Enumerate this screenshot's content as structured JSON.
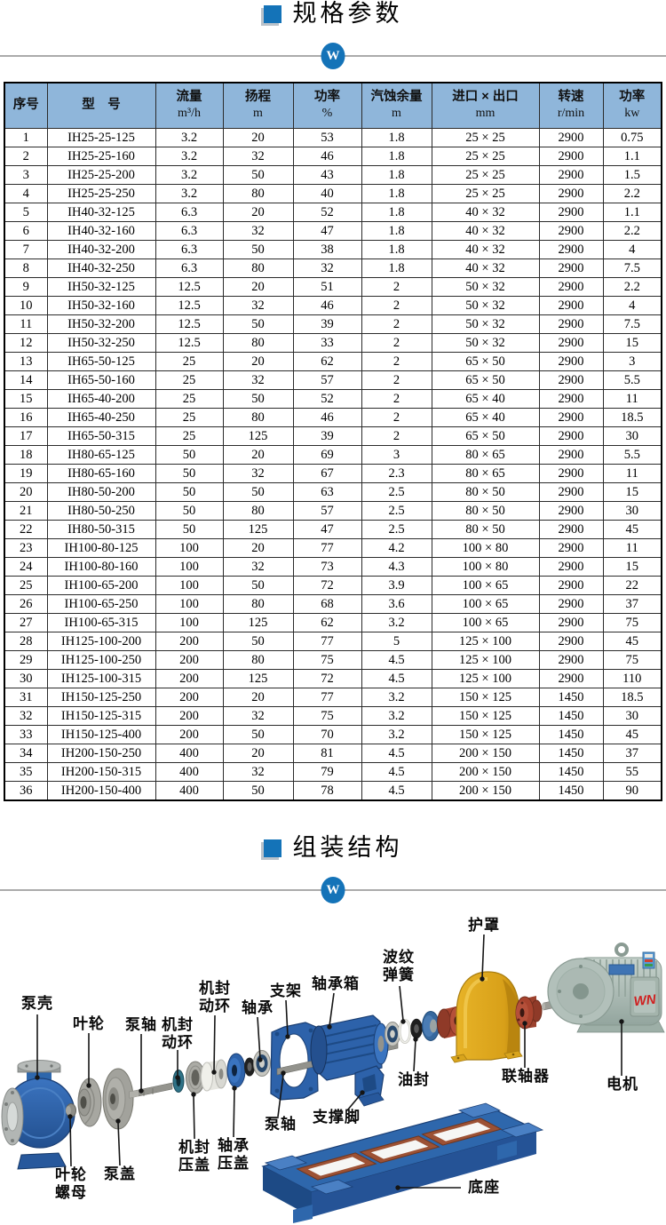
{
  "colors": {
    "accent": "#1473b8",
    "table_header_bg": "#8fb6da"
  },
  "section_specs": {
    "title": "规格参数",
    "watermark_letter": "W"
  },
  "section_assembly": {
    "title": "组装结构",
    "watermark_letter": "W"
  },
  "spec_table": {
    "columns": [
      {
        "label": "序号",
        "unit": ""
      },
      {
        "label": "型　号",
        "unit": ""
      },
      {
        "label": "流量",
        "unit": "m³/h"
      },
      {
        "label": "扬程",
        "unit": "m"
      },
      {
        "label": "功率",
        "unit": "%"
      },
      {
        "label": "汽蚀余量",
        "unit": "m"
      },
      {
        "label": "进口 × 出口",
        "unit": "mm"
      },
      {
        "label": "转速",
        "unit": "r/min"
      },
      {
        "label": "功率",
        "unit": "kw"
      }
    ],
    "rows": [
      [
        "1",
        "IH25-25-125",
        "3.2",
        "20",
        "53",
        "1.8",
        "25 × 25",
        "2900",
        "0.75"
      ],
      [
        "2",
        "IH25-25-160",
        "3.2",
        "32",
        "46",
        "1.8",
        "25 × 25",
        "2900",
        "1.1"
      ],
      [
        "3",
        "IH25-25-200",
        "3.2",
        "50",
        "43",
        "1.8",
        "25 × 25",
        "2900",
        "1.5"
      ],
      [
        "4",
        "IH25-25-250",
        "3.2",
        "80",
        "40",
        "1.8",
        "25 × 25",
        "2900",
        "2.2"
      ],
      [
        "5",
        "IH40-32-125",
        "6.3",
        "20",
        "52",
        "1.8",
        "40 × 32",
        "2900",
        "1.1"
      ],
      [
        "6",
        "IH40-32-160",
        "6.3",
        "32",
        "47",
        "1.8",
        "40 × 32",
        "2900",
        "2.2"
      ],
      [
        "7",
        "IH40-32-200",
        "6.3",
        "50",
        "38",
        "1.8",
        "40 × 32",
        "2900",
        "4"
      ],
      [
        "8",
        "IH40-32-250",
        "6.3",
        "80",
        "32",
        "1.8",
        "40 × 32",
        "2900",
        "7.5"
      ],
      [
        "9",
        "IH50-32-125",
        "12.5",
        "20",
        "51",
        "2",
        "50 × 32",
        "2900",
        "2.2"
      ],
      [
        "10",
        "IH50-32-160",
        "12.5",
        "32",
        "46",
        "2",
        "50 × 32",
        "2900",
        "4"
      ],
      [
        "11",
        "IH50-32-200",
        "12.5",
        "50",
        "39",
        "2",
        "50 × 32",
        "2900",
        "7.5"
      ],
      [
        "12",
        "IH50-32-250",
        "12.5",
        "80",
        "33",
        "2",
        "50 × 32",
        "2900",
        "15"
      ],
      [
        "13",
        "IH65-50-125",
        "25",
        "20",
        "62",
        "2",
        "65 × 50",
        "2900",
        "3"
      ],
      [
        "14",
        "IH65-50-160",
        "25",
        "32",
        "57",
        "2",
        "65 × 50",
        "2900",
        "5.5"
      ],
      [
        "15",
        "IH65-40-200",
        "25",
        "50",
        "52",
        "2",
        "65 × 40",
        "2900",
        "11"
      ],
      [
        "16",
        "IH65-40-250",
        "25",
        "80",
        "46",
        "2",
        "65 × 40",
        "2900",
        "18.5"
      ],
      [
        "17",
        "IH65-50-315",
        "25",
        "125",
        "39",
        "2",
        "65 × 50",
        "2900",
        "30"
      ],
      [
        "18",
        "IH80-65-125",
        "50",
        "20",
        "69",
        "3",
        "80 × 65",
        "2900",
        "5.5"
      ],
      [
        "19",
        "IH80-65-160",
        "50",
        "32",
        "67",
        "2.3",
        "80 × 65",
        "2900",
        "11"
      ],
      [
        "20",
        "IH80-50-200",
        "50",
        "50",
        "63",
        "2.5",
        "80 × 50",
        "2900",
        "15"
      ],
      [
        "21",
        "IH80-50-250",
        "50",
        "80",
        "57",
        "2.5",
        "80 × 50",
        "2900",
        "30"
      ],
      [
        "22",
        "IH80-50-315",
        "50",
        "125",
        "47",
        "2.5",
        "80 × 50",
        "2900",
        "45"
      ],
      [
        "23",
        "IH100-80-125",
        "100",
        "20",
        "77",
        "4.2",
        "100 × 80",
        "2900",
        "11"
      ],
      [
        "24",
        "IH100-80-160",
        "100",
        "32",
        "73",
        "4.3",
        "100 × 80",
        "2900",
        "15"
      ],
      [
        "25",
        "IH100-65-200",
        "100",
        "50",
        "72",
        "3.9",
        "100 × 65",
        "2900",
        "22"
      ],
      [
        "26",
        "IH100-65-250",
        "100",
        "80",
        "68",
        "3.6",
        "100 × 65",
        "2900",
        "37"
      ],
      [
        "27",
        "IH100-65-315",
        "100",
        "125",
        "62",
        "3.2",
        "100 × 65",
        "2900",
        "75"
      ],
      [
        "28",
        "IH125-100-200",
        "200",
        "50",
        "77",
        "5",
        "125 × 100",
        "2900",
        "45"
      ],
      [
        "29",
        "IH125-100-250",
        "200",
        "80",
        "75",
        "4.5",
        "125 × 100",
        "2900",
        "75"
      ],
      [
        "30",
        "IH125-100-315",
        "200",
        "125",
        "72",
        "4.5",
        "125 × 100",
        "2900",
        "110"
      ],
      [
        "31",
        "IH150-125-250",
        "200",
        "20",
        "77",
        "3.2",
        "150 × 125",
        "1450",
        "18.5"
      ],
      [
        "32",
        "IH150-125-315",
        "200",
        "32",
        "75",
        "3.2",
        "150 × 125",
        "1450",
        "30"
      ],
      [
        "33",
        "IH150-125-400",
        "200",
        "50",
        "70",
        "3.2",
        "150 × 125",
        "1450",
        "45"
      ],
      [
        "34",
        "IH200-150-250",
        "400",
        "20",
        "81",
        "4.5",
        "200 × 150",
        "1450",
        "37"
      ],
      [
        "35",
        "IH200-150-315",
        "400",
        "32",
        "79",
        "4.5",
        "200 × 150",
        "1450",
        "55"
      ],
      [
        "36",
        "IH200-150-400",
        "400",
        "50",
        "78",
        "4.5",
        "200 × 150",
        "1450",
        "90"
      ]
    ]
  },
  "diagram": {
    "motor_brand": "WN",
    "labels": {
      "pump_casing": "泵壳",
      "impeller": "叶轮",
      "pump_shaft_front": "泵轴",
      "seal_rotating_ring_lower": "机封\n动环",
      "seal_rotating_ring_upper": "机封\n动环",
      "bearing": "轴承",
      "bracket": "支架",
      "bearing_box": "轴承箱",
      "wave_spring": "波纹\n弹簧",
      "guard": "护罩",
      "oil_seal": "油封",
      "coupling": "联轴器",
      "motor": "电机",
      "support_foot": "支撑脚",
      "seal_gland": "机封\n压盖",
      "bearing_gland": "轴承\n压盖",
      "pump_shaft_rear": "泵轴",
      "base": "底座",
      "impeller_nut": "叶轮\n螺母",
      "pump_cover": "泵盖"
    }
  }
}
